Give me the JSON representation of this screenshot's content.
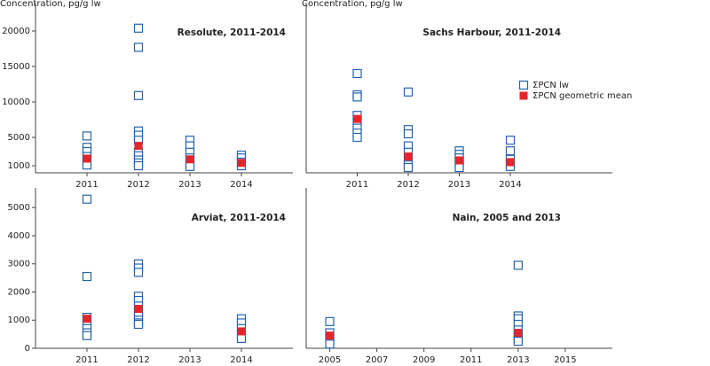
{
  "chart_data": [
    {
      "type": "scatter",
      "title": "Resolute, 2011-2014",
      "ylabel": "Concentration, pg/g lw",
      "xlim": [
        2010,
        2015
      ],
      "xticks": [
        2011,
        2012,
        2013,
        2014
      ],
      "ylim": [
        0,
        24000
      ],
      "yticks": [
        1000,
        5000,
        10000,
        15000,
        20000
      ],
      "legend": false,
      "series": [
        {
          "name": "ΣPCN lw",
          "color": "#2464ad",
          "marker": "open-square",
          "x": [
            2011,
            2011,
            2011,
            2011,
            2011,
            2011,
            2012,
            2012,
            2012,
            2012,
            2012,
            2012,
            2012,
            2012,
            2012,
            2012,
            2012,
            2013,
            2013,
            2013,
            2013,
            2013,
            2013,
            2014,
            2014,
            2014,
            2014
          ],
          "values": [
            5200,
            3600,
            3000,
            2300,
            1700,
            1100,
            20400,
            17700,
            10900,
            5900,
            5300,
            4600,
            2900,
            2400,
            1800,
            1400,
            1000,
            4600,
            3800,
            2900,
            2100,
            1300,
            900,
            2500,
            2100,
            1500,
            1000
          ]
        },
        {
          "name": "ΣPCN geometric mean",
          "color": "#e3262b",
          "marker": "filled-square",
          "x": [
            2011,
            2012,
            2013,
            2014
          ],
          "values": [
            2000,
            3800,
            1900,
            1400
          ]
        }
      ]
    },
    {
      "type": "scatter",
      "title": "Sachs Harbour, 2011-2014",
      "ylabel": "Concentration, pg/g lw",
      "xlim": [
        2010,
        2016
      ],
      "xticks": [
        2011,
        2012,
        2013,
        2014
      ],
      "ylim": [
        0,
        24000
      ],
      "legend": "right",
      "series": [
        {
          "name": "ΣPCN lw",
          "color": "#2464ad",
          "marker": "open-square",
          "x": [
            2011,
            2011,
            2011,
            2011,
            2011,
            2011,
            2011,
            2011,
            2012,
            2012,
            2012,
            2012,
            2012,
            2012,
            2012,
            2012,
            2013,
            2013,
            2013,
            2013,
            2013,
            2013,
            2014,
            2014,
            2014,
            2014,
            2014
          ],
          "values": [
            14000,
            11000,
            10700,
            8100,
            7100,
            6300,
            5600,
            5000,
            11400,
            6100,
            5500,
            3800,
            2900,
            1600,
            1100,
            750,
            3100,
            2600,
            2100,
            1600,
            1100,
            750,
            4600,
            3100,
            1900,
            1250,
            900
          ]
        },
        {
          "name": "ΣPCN geometric mean",
          "color": "#e3262b",
          "marker": "filled-square",
          "x": [
            2011,
            2012,
            2013,
            2014
          ],
          "values": [
            7600,
            2300,
            1750,
            1500
          ]
        }
      ]
    },
    {
      "type": "scatter",
      "title": "Arviat, 2011-2014",
      "xlim": [
        2010,
        2015
      ],
      "xticks": [
        2011,
        2012,
        2013,
        2014
      ],
      "ylim": [
        0,
        5700
      ],
      "yticks": [
        0,
        1000,
        2000,
        3000,
        4000,
        5000
      ],
      "legend": false,
      "series": [
        {
          "name": "ΣPCN lw",
          "color": "#2464ad",
          "marker": "open-square",
          "x": [
            2011,
            2011,
            2011,
            2011,
            2011,
            2011,
            2011,
            2011,
            2012,
            2012,
            2012,
            2012,
            2012,
            2012,
            2012,
            2012,
            2012,
            2012,
            2012,
            2014,
            2014,
            2014,
            2014,
            2014
          ],
          "values": [
            5300,
            2550,
            1100,
            1000,
            800,
            700,
            550,
            450,
            3000,
            2850,
            2700,
            1850,
            1700,
            1500,
            1300,
            1150,
            1000,
            900,
            850,
            1050,
            900,
            700,
            500,
            350
          ]
        },
        {
          "name": "ΣPCN geometric mean",
          "color": "#e3262b",
          "marker": "filled-square",
          "x": [
            2011,
            2012,
            2014
          ],
          "values": [
            1050,
            1400,
            600
          ]
        }
      ]
    },
    {
      "type": "scatter",
      "title": "Nain, 2005 and 2013",
      "xlim": [
        2004,
        2017
      ],
      "xticks": [
        2005,
        2007,
        2009,
        2011,
        2013,
        2015
      ],
      "ylim": [
        0,
        5700
      ],
      "legend": false,
      "series": [
        {
          "name": "ΣPCN lw",
          "color": "#2464ad",
          "marker": "open-square",
          "x": [
            2005,
            2005,
            2005,
            2005,
            2013,
            2013,
            2013,
            2013,
            2013,
            2013,
            2013,
            2013
          ],
          "values": [
            950,
            550,
            400,
            150,
            2950,
            1150,
            1050,
            850,
            650,
            450,
            350,
            250
          ]
        },
        {
          "name": "ΣPCN geometric mean",
          "color": "#e3262b",
          "marker": "filled-square",
          "x": [
            2005,
            2013
          ],
          "values": [
            450,
            550
          ]
        }
      ]
    }
  ]
}
